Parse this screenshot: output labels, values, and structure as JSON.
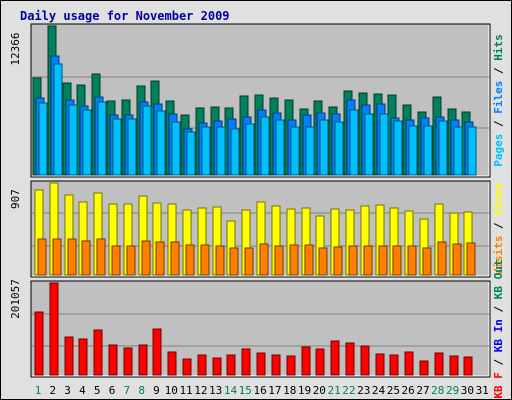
{
  "chart_data": {
    "type": "bar",
    "title": "Daily usage for November 2009",
    "categories": [
      "1",
      "2",
      "3",
      "4",
      "5",
      "6",
      "7",
      "8",
      "9",
      "10",
      "11",
      "12",
      "13",
      "14",
      "15",
      "16",
      "17",
      "18",
      "19",
      "20",
      "21",
      "22",
      "23",
      "24",
      "25",
      "26",
      "27",
      "28",
      "29",
      "30",
      "31"
    ],
    "weekend_days": [
      "1",
      "7",
      "8",
      "14",
      "15",
      "21",
      "22",
      "28",
      "29"
    ],
    "panels": [
      {
        "id": "top",
        "max_label": "12366",
        "ylim": [
          0,
          12366
        ],
        "right_label_parts": [
          "Pages",
          " / ",
          "Files",
          " / ",
          "Hits"
        ],
        "series": [
          {
            "name": "Hits",
            "color": "#00805c",
            "values": [
              8050,
              12366,
              7600,
              7450,
              8350,
              6150,
              6200,
              7350,
              7800,
              6150,
              5000,
              5600,
              5650,
              5550,
              6550,
              6650,
              6400,
              6250,
              5500,
              6150,
              5650,
              7000,
              6800,
              6700,
              6600,
              5850,
              5200,
              6450,
              5500,
              5250,
              null
            ]
          },
          {
            "name": "Files",
            "color": "#0080ff",
            "values": [
              6350,
              9900,
              6200,
              5750,
              6500,
              4950,
              5000,
              6050,
              5900,
              5100,
              3850,
              4350,
              4450,
              4650,
              4850,
              5400,
              5150,
              4600,
              5000,
              5150,
              5050,
              6200,
              5800,
              5900,
              4700,
              4600,
              4700,
              4850,
              4550,
              4400,
              null
            ]
          },
          {
            "name": "Pages",
            "color": "#00c0ff",
            "values": [
              6000,
              9250,
              5800,
              5400,
              6050,
              4650,
              4650,
              5700,
              5350,
              4400,
              3550,
              4000,
              4000,
              3800,
              4250,
              4850,
              4600,
              4000,
              4000,
              4600,
              4400,
              5400,
              5050,
              5050,
              4450,
              4100,
              4050,
              4500,
              3950,
              3950,
              null
            ]
          }
        ]
      },
      {
        "id": "mid",
        "max_label": "907",
        "ylim": [
          0,
          907
        ],
        "right_label_parts": [
          "Visits",
          " / ",
          "Sites"
        ],
        "series": [
          {
            "name": "Visits",
            "color": "#ffff00",
            "values": [
              835,
              907,
              785,
              720,
              810,
              700,
              700,
              775,
              710,
              700,
              640,
              660,
              675,
              535,
              640,
              720,
              680,
              655,
              660,
              585,
              655,
              640,
              685,
              695,
              660,
              635,
              555,
              700,
              610,
              625,
              null
            ]
          },
          {
            "name": "Sites",
            "color": "#ff8000",
            "values": [
              350,
              350,
              350,
              340,
              355,
              285,
              290,
              335,
              330,
              325,
              300,
              295,
              290,
              265,
              270,
              305,
              285,
              300,
              300,
              265,
              280,
              285,
              290,
              290,
              285,
              285,
              265,
              330,
              310,
              320,
              null
            ]
          }
        ]
      },
      {
        "id": "bot",
        "max_label": "201057",
        "ylim": [
          0,
          201057
        ],
        "right_label_parts": [
          "KB F",
          " / ",
          "KB In",
          " / ",
          "KB Out"
        ],
        "series": [
          {
            "name": "KB F",
            "color": "#ff0000",
            "values": [
              138000,
              201057,
              82000,
              78000,
              98000,
              66000,
              60000,
              65000,
              101000,
              50000,
              35000,
              44000,
              38000,
              43000,
              56000,
              48000,
              43000,
              42000,
              61000,
              57000,
              74000,
              71000,
              64000,
              45000,
              43000,
              50000,
              30000,
              49000,
              41000,
              40000,
              null
            ]
          }
        ]
      }
    ],
    "text_colors": {
      "title": "#0000a0",
      "hits": "#00805c",
      "files": "#0080ff",
      "pages": "#00c0ff",
      "visits": "#ffff00",
      "sites": "#ff8000",
      "kbf": "#ff0000",
      "kbin": "#0000ff",
      "kbout": "#00805c",
      "separator": "#000000",
      "weekend": "#00805c",
      "weekday": "#000000"
    },
    "background": {
      "frame": "#e0e0e0",
      "panel": "#c0c0c0",
      "grid": "#808080"
    }
  }
}
